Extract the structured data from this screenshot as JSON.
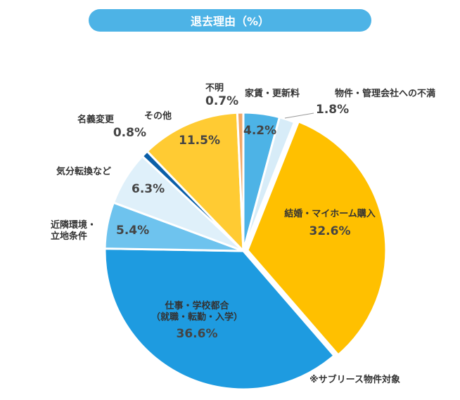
{
  "header": {
    "title": "退去理由（%）"
  },
  "note": "※サブリース物件対象",
  "chart_data": {
    "type": "pie",
    "title": "退去理由（%）",
    "slices": [
      {
        "label": "家賃・更新料",
        "value": 4.2,
        "display": "4.2%",
        "color": "#4db3e6"
      },
      {
        "label": "物件・管理会社への不満",
        "value": 1.8,
        "display": "1.8%",
        "color": "#d7ecf8"
      },
      {
        "label": "結婚・マイホーム購入",
        "value": 32.6,
        "display": "32.6%",
        "color": "#ffc000"
      },
      {
        "label": "仕事・学校都合\n（就職・転勤・入学）",
        "value": 36.6,
        "display": "36.6%",
        "color": "#1e9be0"
      },
      {
        "label": "近隣環境・\n立地条件",
        "value": 5.4,
        "display": "5.4%",
        "color": "#6ec3ee"
      },
      {
        "label": "気分転換など",
        "value": 6.3,
        "display": "6.3%",
        "color": "#dff0fa"
      },
      {
        "label": "名義変更",
        "value": 0.8,
        "display": "0.8%",
        "color": "#0a5fa8"
      },
      {
        "label": "その他",
        "value": 11.5,
        "display": "11.5%",
        "color": "#ffcb33"
      },
      {
        "label": "不明",
        "value": 0.7,
        "display": "0.7%",
        "color": "#f0a868"
      }
    ]
  }
}
